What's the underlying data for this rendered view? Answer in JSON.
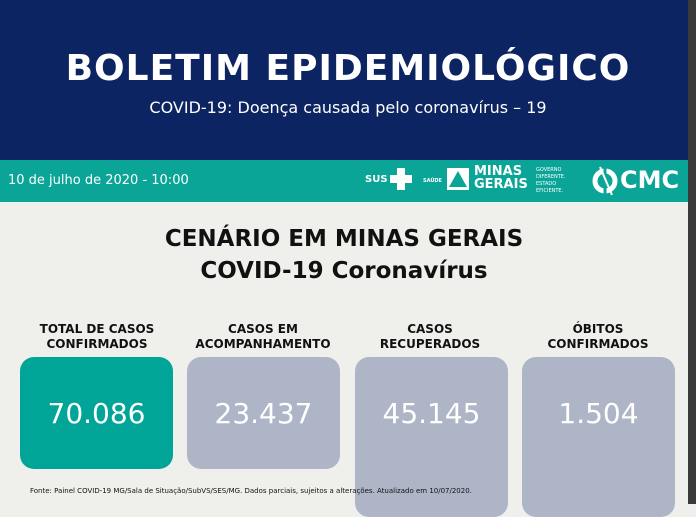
{
  "header": {
    "title": "BOLETIM EPIDEMIOLÓGICO",
    "subtitle": "COVID-19: Doença causada pelo coronavírus – 19"
  },
  "band": {
    "date": "10 de julho de 2020 - 10:00",
    "sus": "SUS",
    "saude": "SAÚDE",
    "minas": "MINAS",
    "gerais": "GERAIS",
    "slogan": [
      "GOVERNO",
      "DIFERENTE.",
      "ESTADO",
      "EFICIENTE."
    ],
    "cmc": "CMC"
  },
  "main": {
    "title": "CENÁRIO EM MINAS GERAIS",
    "subtitle": "COVID-19 Coronavírus"
  },
  "cards": [
    {
      "label1": "TOTAL DE CASOS",
      "label2": "CONFIRMADOS",
      "value": "70.086",
      "color": "#00a597"
    },
    {
      "label1": "CASOS EM",
      "label2": "ACOMPANHAMENTO",
      "value": "23.437",
      "color": "#adb5c7"
    },
    {
      "label1": "CASOS",
      "label2": "RECUPERADOS",
      "value": "45.145",
      "color": "#adb5c7"
    },
    {
      "label1": "ÓBITOS",
      "label2": "CONFIRMADOS",
      "value": "1.504",
      "color": "#adb5c7"
    }
  ],
  "footer": "Fonte: Painel COVID-19 MG/Sala de Situação/SubVS/SES/MG. Dados parciais, sujeitos a alterações. Atualizado em 10/07/2020."
}
